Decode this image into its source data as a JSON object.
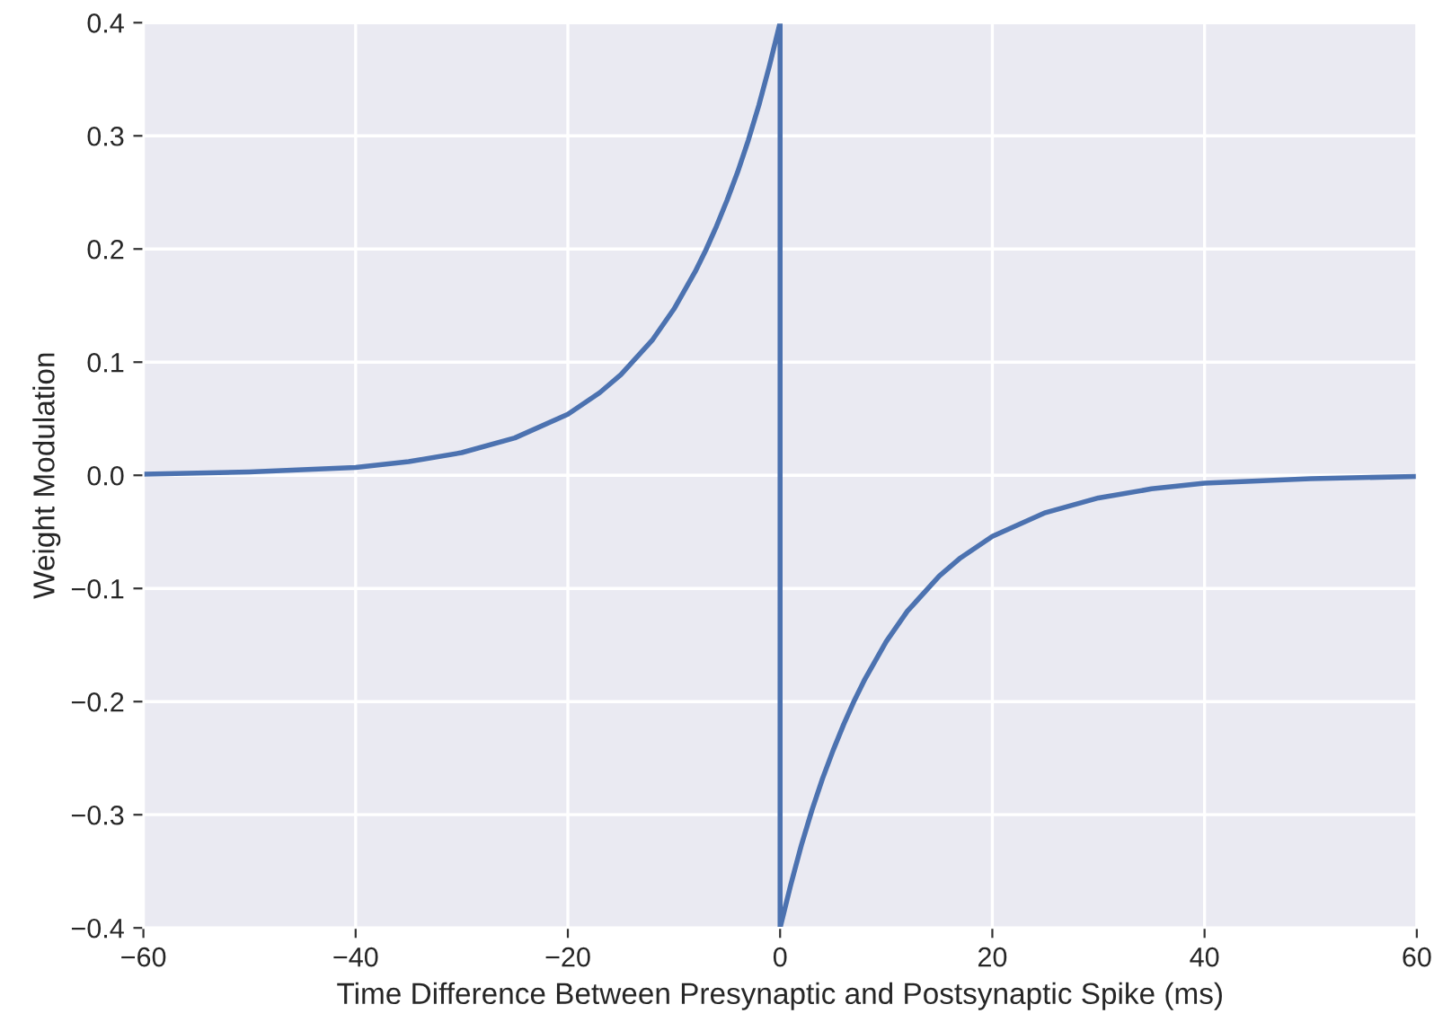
{
  "chart_data": {
    "type": "line",
    "xlabel": "Time Difference Between Presynaptic and Postsynaptic Spike (ms)",
    "ylabel": "Weight Modulation",
    "x": [
      -60,
      -50,
      -40,
      -35,
      -30,
      -25,
      -20,
      -17,
      -15,
      -12,
      -10,
      -8,
      -7,
      -6,
      -5,
      -4,
      -3,
      -2,
      -1,
      0,
      0,
      1,
      2,
      3,
      4,
      5,
      6,
      7,
      8,
      10,
      12,
      15,
      17,
      20,
      25,
      30,
      35,
      40,
      50,
      60
    ],
    "series": [
      {
        "color": "#4c72b0",
        "values": [
          0.001,
          0.003,
          0.007,
          0.012,
          0.02,
          0.033,
          0.054,
          0.073,
          0.089,
          0.12,
          0.147,
          0.18,
          0.199,
          0.22,
          0.243,
          0.268,
          0.296,
          0.327,
          0.362,
          0.4,
          -0.4,
          -0.362,
          -0.327,
          -0.296,
          -0.268,
          -0.243,
          -0.22,
          -0.199,
          -0.18,
          -0.147,
          -0.12,
          -0.089,
          -0.073,
          -0.054,
          -0.033,
          -0.02,
          -0.012,
          -0.007,
          -0.003,
          -0.001
        ]
      }
    ],
    "xlim": [
      -60,
      60
    ],
    "ylim": [
      -0.4,
      0.4
    ],
    "xticks": [
      {
        "value": -60,
        "label": "−60"
      },
      {
        "value": -40,
        "label": "−40"
      },
      {
        "value": -20,
        "label": "−20"
      },
      0,
      20,
      40,
      60
    ],
    "yticks": [
      {
        "value": -0.4,
        "label": "−0.4"
      },
      {
        "value": -0.3,
        "label": "−0.3"
      },
      {
        "value": -0.2,
        "label": "−0.2"
      },
      {
        "value": -0.1,
        "label": "−0.1"
      },
      {
        "value": 0.0,
        "label": "0.0"
      },
      0.1,
      0.2,
      0.3,
      0.4
    ],
    "grid": true,
    "marker": "none",
    "line_style": "solid"
  }
}
